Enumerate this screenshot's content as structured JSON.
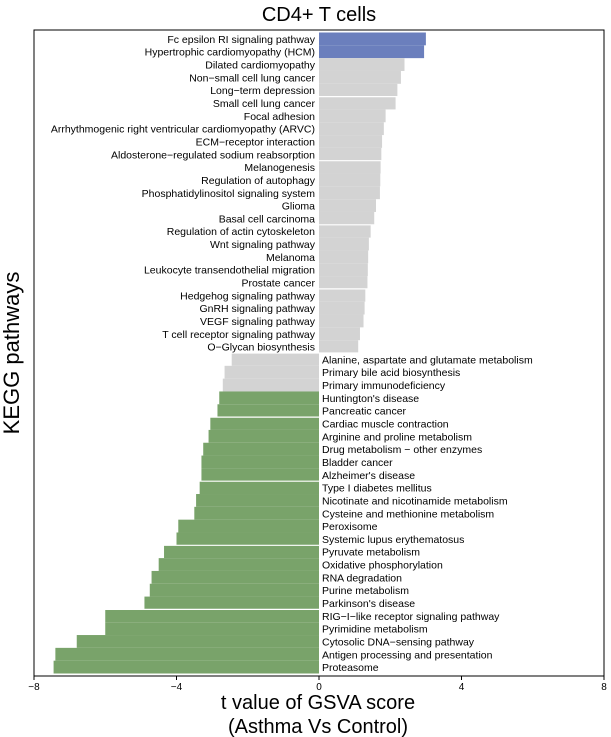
{
  "chart_data": {
    "type": "bar",
    "orientation": "horizontal",
    "title": "CD4+ T cells",
    "xlabel": "t value of GSVA score\n(Asthma Vs Control)",
    "ylabel": "KEGG pathways",
    "xlim": [
      -8,
      8
    ],
    "xticks": [
      -8,
      -4,
      0,
      4,
      8
    ],
    "xtick_labels": [
      "−8",
      "−4",
      "0",
      "4",
      "8"
    ],
    "colors": {
      "up": "#6b7fbd",
      "neutral": "#d3d3d3",
      "down": "#79a36a"
    },
    "bars": [
      {
        "label": "Fc epsilon RI signaling pathway",
        "value": 3.0,
        "group": "up"
      },
      {
        "label": "Hypertrophic cardiomyopathy (HCM)",
        "value": 2.95,
        "group": "up"
      },
      {
        "label": "Dilated cardiomyopathy",
        "value": 2.4,
        "group": "neutral"
      },
      {
        "label": "Non−small cell lung cancer",
        "value": 2.3,
        "group": "neutral"
      },
      {
        "label": "Long−term depression",
        "value": 2.2,
        "group": "neutral"
      },
      {
        "label": "Small cell lung cancer",
        "value": 2.15,
        "group": "neutral"
      },
      {
        "label": "Focal adhesion",
        "value": 1.87,
        "group": "neutral"
      },
      {
        "label": "Arrhythmogenic right ventricular cardiomyopathy (ARVC)",
        "value": 1.82,
        "group": "neutral"
      },
      {
        "label": "ECM−receptor interaction",
        "value": 1.77,
        "group": "neutral"
      },
      {
        "label": "Aldosterone−regulated sodium reabsorption",
        "value": 1.75,
        "group": "neutral"
      },
      {
        "label": "Melanogenesis",
        "value": 1.73,
        "group": "neutral"
      },
      {
        "label": "Regulation of autophagy",
        "value": 1.72,
        "group": "neutral"
      },
      {
        "label": "Phosphatidylinositol signaling system",
        "value": 1.71,
        "group": "neutral"
      },
      {
        "label": "Glioma",
        "value": 1.6,
        "group": "neutral"
      },
      {
        "label": "Basal cell carcinoma",
        "value": 1.55,
        "group": "neutral"
      },
      {
        "label": "Regulation of actin cytoskeleton",
        "value": 1.45,
        "group": "neutral"
      },
      {
        "label": "Wnt signaling pathway",
        "value": 1.4,
        "group": "neutral"
      },
      {
        "label": "Melanoma",
        "value": 1.38,
        "group": "neutral"
      },
      {
        "label": "Leukocyte transendothelial migration",
        "value": 1.37,
        "group": "neutral"
      },
      {
        "label": "Prostate cancer",
        "value": 1.36,
        "group": "neutral"
      },
      {
        "label": "Hedgehog signaling pathway",
        "value": 1.3,
        "group": "neutral"
      },
      {
        "label": "GnRH signaling pathway",
        "value": 1.28,
        "group": "neutral"
      },
      {
        "label": "VEGF signaling pathway",
        "value": 1.25,
        "group": "neutral"
      },
      {
        "label": "T cell receptor signaling pathway",
        "value": 1.15,
        "group": "neutral"
      },
      {
        "label": "O−Glycan biosynthesis",
        "value": 1.1,
        "group": "neutral"
      },
      {
        "label": "Alanine, aspartate and glutamate metabolism",
        "value": -2.45,
        "group": "neutral"
      },
      {
        "label": "Primary bile acid biosynthesis",
        "value": -2.65,
        "group": "neutral"
      },
      {
        "label": "Primary immunodeficiency",
        "value": -2.7,
        "group": "neutral"
      },
      {
        "label": "Huntington's disease",
        "value": -2.8,
        "group": "down"
      },
      {
        "label": "Pancreatic cancer",
        "value": -2.85,
        "group": "down"
      },
      {
        "label": "Cardiac muscle contraction",
        "value": -3.05,
        "group": "down"
      },
      {
        "label": "Arginine and proline metabolism",
        "value": -3.1,
        "group": "down"
      },
      {
        "label": "Drug metabolism − other enzymes",
        "value": -3.25,
        "group": "down"
      },
      {
        "label": "Bladder cancer",
        "value": -3.3,
        "group": "down"
      },
      {
        "label": "Alzheimer's disease",
        "value": -3.3,
        "group": "down"
      },
      {
        "label": "Type I diabetes mellitus",
        "value": -3.35,
        "group": "down"
      },
      {
        "label": "Nicotinate and nicotinamide metabolism",
        "value": -3.45,
        "group": "down"
      },
      {
        "label": "Cysteine and methionine metabolism",
        "value": -3.5,
        "group": "down"
      },
      {
        "label": "Peroxisome",
        "value": -3.95,
        "group": "down"
      },
      {
        "label": "Systemic lupus erythematosus",
        "value": -4.0,
        "group": "down"
      },
      {
        "label": "Pyruvate metabolism",
        "value": -4.35,
        "group": "down"
      },
      {
        "label": "Oxidative phosphorylation",
        "value": -4.5,
        "group": "down"
      },
      {
        "label": "RNA degradation",
        "value": -4.7,
        "group": "down"
      },
      {
        "label": "Purine metabolism",
        "value": -4.75,
        "group": "down"
      },
      {
        "label": "Parkinson's disease",
        "value": -4.9,
        "group": "down"
      },
      {
        "label": "RIG−I−like receptor signaling pathway",
        "value": -6.0,
        "group": "down"
      },
      {
        "label": "Pyrimidine metabolism",
        "value": -6.0,
        "group": "down"
      },
      {
        "label": "Cytosolic DNA−sensing pathway",
        "value": -6.8,
        "group": "down"
      },
      {
        "label": "Antigen processing and presentation",
        "value": -7.4,
        "group": "down"
      },
      {
        "label": "Proteasome",
        "value": -7.45,
        "group": "down"
      }
    ]
  }
}
